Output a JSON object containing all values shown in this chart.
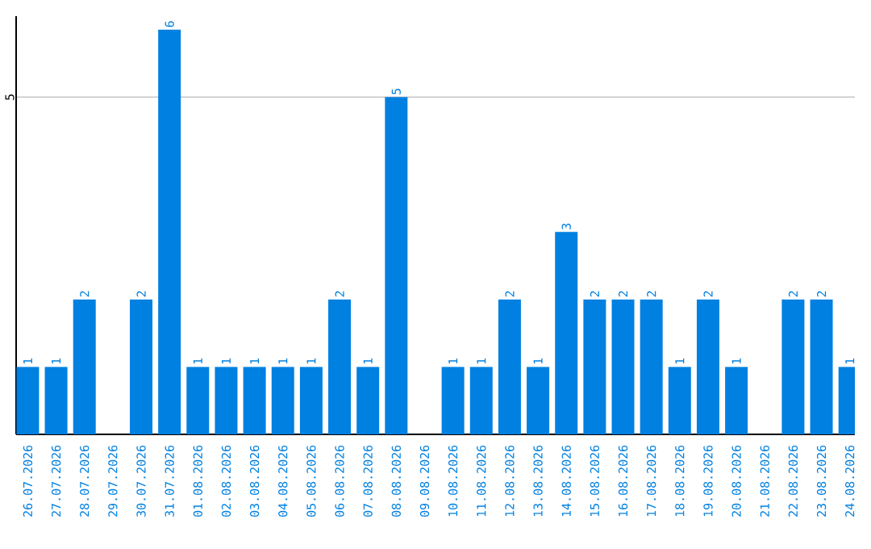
{
  "chart_data": {
    "type": "bar",
    "categories": [
      "26.07.2026",
      "27.07.2026",
      "28.07.2026",
      "29.07.2026",
      "30.07.2026",
      "31.07.2026",
      "01.08.2026",
      "02.08.2026",
      "03.08.2026",
      "04.08.2026",
      "05.08.2026",
      "06.08.2026",
      "07.08.2026",
      "08.08.2026",
      "09.08.2026",
      "10.08.2026",
      "11.08.2026",
      "12.08.2026",
      "13.08.2026",
      "14.08.2026",
      "15.08.2026",
      "16.08.2026",
      "17.08.2026",
      "18.08.2026",
      "19.08.2026",
      "20.08.2026",
      "21.08.2026",
      "22.08.2026",
      "23.08.2026",
      "24.08.2026"
    ],
    "values": [
      1,
      1,
      2,
      0,
      2,
      6,
      1,
      1,
      1,
      1,
      1,
      2,
      1,
      5,
      0,
      1,
      1,
      2,
      1,
      3,
      2,
      2,
      2,
      1,
      2,
      1,
      0,
      2,
      2,
      1
    ],
    "value_labels": [
      "1",
      "1",
      "2",
      null,
      "2",
      "6",
      "1",
      "1",
      "1",
      "1",
      "1",
      "2",
      "1",
      "5",
      null,
      "1",
      "1",
      "2",
      "1",
      "3",
      "2",
      "2",
      "2",
      "1",
      "2",
      "1",
      null,
      "2",
      "2",
      "1"
    ],
    "color": "#0080e0",
    "ylim": [
      0,
      6.2
    ],
    "yticks": [
      5
    ],
    "grid": "y"
  }
}
